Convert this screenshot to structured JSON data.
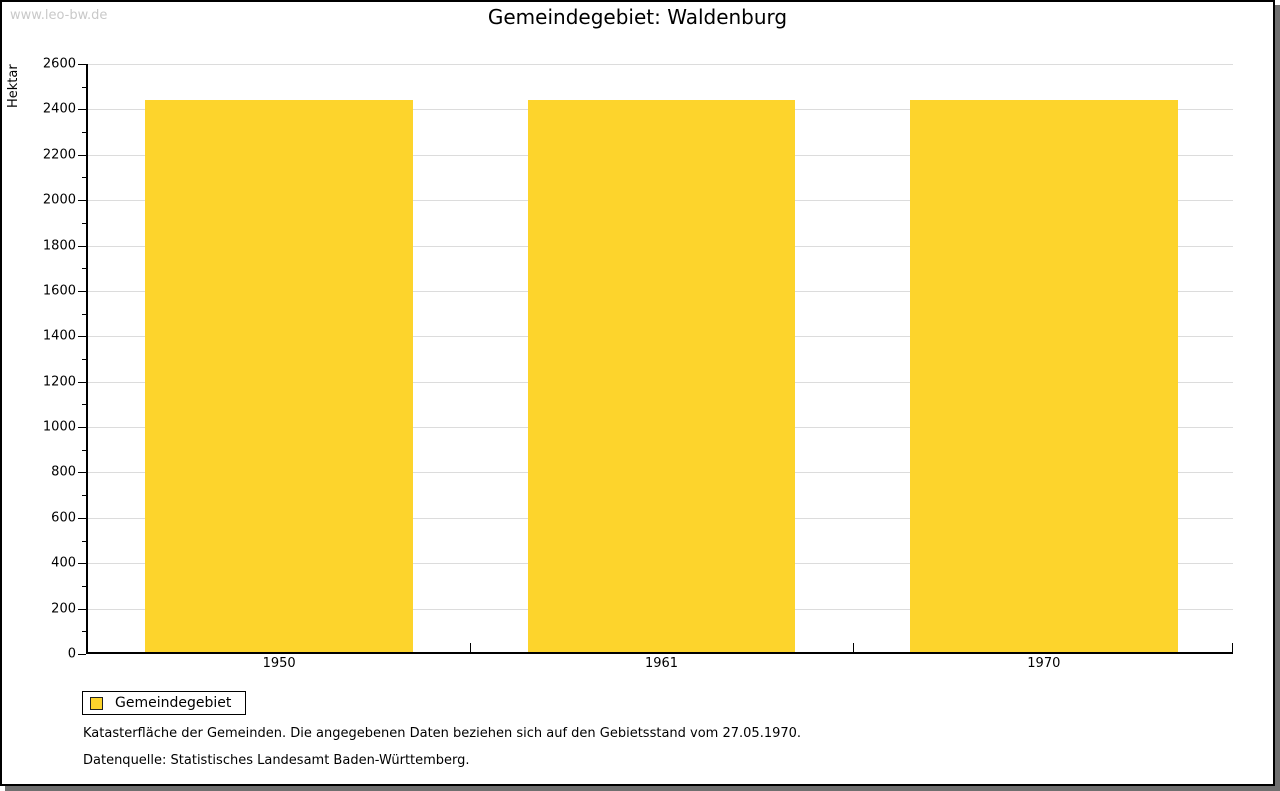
{
  "watermark": "www.leo-bw.de",
  "title": "Gemeindegebiet: Waldenburg",
  "legend": {
    "label": "Gemeindegebiet"
  },
  "footnotes": {
    "line1": "Katasterfläche der Gemeinden. Die angegebenen Daten beziehen sich auf den Gebietsstand vom 27.05.1970.",
    "line2": "Datenquelle: Statistisches Landesamt Baden-Württemberg."
  },
  "chart_data": {
    "type": "bar",
    "title": "Gemeindegebiet: Waldenburg",
    "categories": [
      "1950",
      "1961",
      "1970"
    ],
    "series": [
      {
        "name": "Gemeindegebiet",
        "values": [
          2433,
          2433,
          2433
        ]
      }
    ],
    "xlabel": "",
    "ylabel": "Hektar",
    "ylim": [
      0,
      2600
    ],
    "ytick_major": 200,
    "ytick_minor": 100,
    "grid": true,
    "legend_position": "bottom-left",
    "bar_color": "#fdd42c",
    "gridline_color": "#dcdcdc",
    "axis_color": "#000000",
    "bar_width_fraction": 0.7
  }
}
